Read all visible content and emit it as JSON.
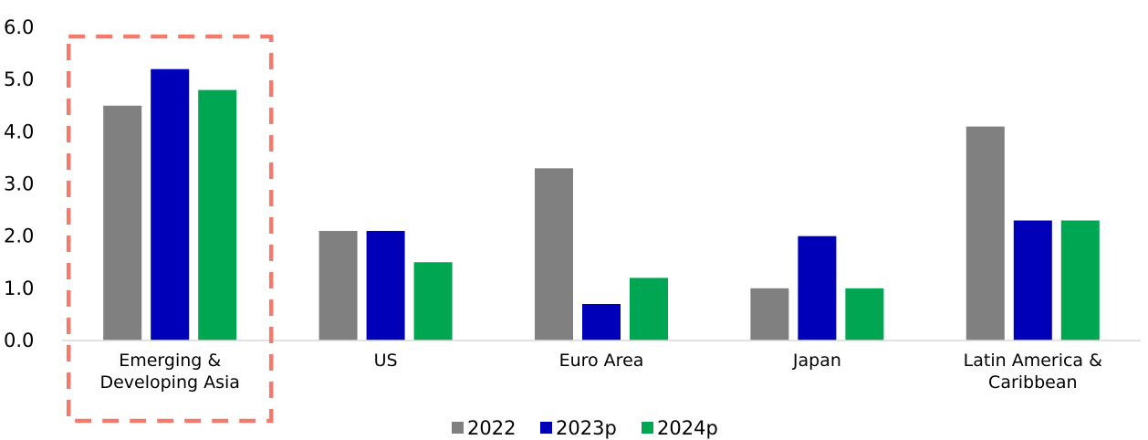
{
  "chart_data": {
    "type": "bar",
    "categories": [
      [
        "Emerging &",
        "Developing Asia"
      ],
      [
        "US"
      ],
      [
        "Euro Area"
      ],
      [
        "Japan"
      ],
      [
        "Latin America &",
        "Caribbean"
      ]
    ],
    "series": [
      {
        "name": "2022",
        "color": "#808080",
        "values": [
          4.5,
          2.1,
          3.3,
          1.0,
          4.1
        ]
      },
      {
        "name": "2023p",
        "color": "#0000b8",
        "values": [
          5.2,
          2.1,
          0.7,
          2.0,
          2.3
        ]
      },
      {
        "name": "2024p",
        "color": "#00a651",
        "values": [
          4.8,
          1.5,
          1.2,
          1.0,
          2.3
        ]
      }
    ],
    "ylim": [
      0,
      6
    ],
    "yticks": [
      "0.0",
      "1.0",
      "2.0",
      "3.0",
      "4.0",
      "5.0",
      "6.0"
    ],
    "grid": false,
    "legend_position": "bottom-center",
    "highlight": {
      "category_index": 0,
      "style": "dashed-box",
      "color": "#f47a6b"
    }
  }
}
